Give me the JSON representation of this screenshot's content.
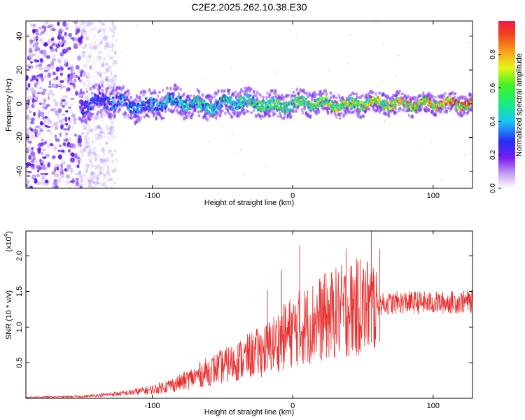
{
  "title": "C2E2.2025.262.10.38.E30",
  "chart_data": [
    {
      "type": "heatmap",
      "name": "spectrogram",
      "xlabel": "Height of straight line (km)",
      "ylabel": "Frequency (Hz)",
      "xlim": [
        -190,
        128
      ],
      "ylim": [
        -50,
        49
      ],
      "xticks": [
        -100,
        0,
        100
      ],
      "xtick_labels": [
        "-100",
        "0",
        "100"
      ],
      "yticks": [
        -40,
        -20,
        0,
        20,
        40
      ],
      "ytick_labels": [
        "-40",
        "-20",
        "0",
        "20",
        "40"
      ],
      "colorbar": {
        "label": "Normalized spectral amplitude",
        "range": [
          0,
          1
        ],
        "ticks": [
          0.0,
          0.2,
          0.4,
          0.6,
          0.8
        ],
        "tick_labels": [
          "0.0",
          "0.2",
          "0.4",
          "0.6",
          "0.8"
        ]
      },
      "features": [
        {
          "x_range": [
            -190,
            -150
          ],
          "freq_range": [
            -50,
            49
          ],
          "amplitude": 0.2,
          "note": "broadband noise"
        },
        {
          "x_range": [
            -150,
            128
          ],
          "center_freq": 0,
          "band_halfwidth_hz": 6,
          "amplitude_range": [
            0.3,
            0.9
          ],
          "note": "narrow band near 0 Hz"
        }
      ]
    },
    {
      "type": "line",
      "name": "snr",
      "xlabel": "Height of straight line (km)",
      "ylabel": "SNR (10 * v/v)",
      "scale_label": "(x10",
      "scale_exponent": "4",
      "scale_suffix": ")",
      "xlim": [
        -190,
        128
      ],
      "ylim": [
        0,
        23500
      ],
      "xticks": [
        -100,
        0,
        100
      ],
      "xtick_labels": [
        "-100",
        "0",
        "100"
      ],
      "yticks": [
        5000,
        10000,
        15000,
        20000
      ],
      "ytick_labels": [
        "0.5",
        "1.0",
        "1.5",
        "2.0"
      ],
      "color": "#e8312f",
      "trend": [
        {
          "x": -190,
          "y": 150
        },
        {
          "x": -150,
          "y": 250
        },
        {
          "x": -120,
          "y": 700
        },
        {
          "x": -100,
          "y": 1200
        },
        {
          "x": -80,
          "y": 2200
        },
        {
          "x": -60,
          "y": 3800
        },
        {
          "x": -40,
          "y": 5200
        },
        {
          "x": -20,
          "y": 6800
        },
        {
          "x": 0,
          "y": 9500
        },
        {
          "x": 20,
          "y": 11200
        },
        {
          "x": 40,
          "y": 12500
        },
        {
          "x": 60,
          "y": 13200
        },
        {
          "x": 80,
          "y": 13500
        },
        {
          "x": 100,
          "y": 13400
        },
        {
          "x": 128,
          "y": 13600
        }
      ],
      "spikes": [
        {
          "x": 5,
          "y": 21500
        },
        {
          "x": -8,
          "y": 18000
        },
        {
          "x": -18,
          "y": 15200
        },
        {
          "x": 38,
          "y": 21000
        },
        {
          "x": 56,
          "y": 23500
        },
        {
          "x": 62,
          "y": 21000
        },
        {
          "x": 48,
          "y": 19500
        }
      ]
    }
  ]
}
